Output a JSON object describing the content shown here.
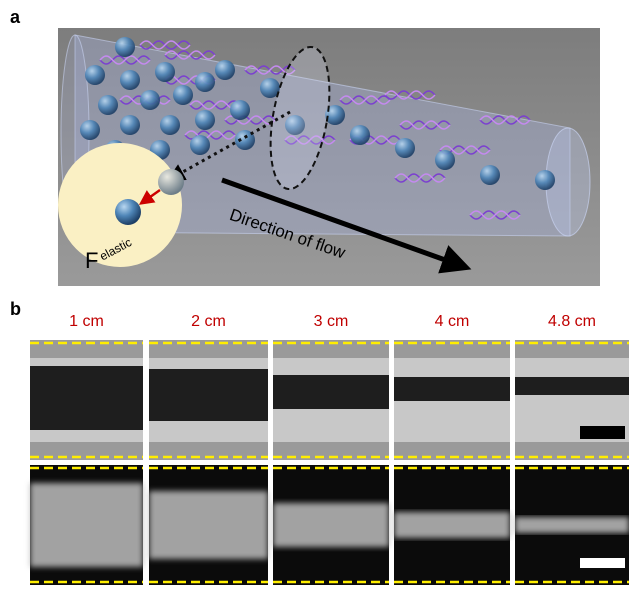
{
  "panel_a": {
    "label": "a",
    "force_label": "F",
    "force_subscript": "elastic",
    "flow_label": "Direction of flow"
  },
  "panel_b": {
    "label": "b",
    "columns": [
      "1 cm",
      "2 cm",
      "3 cm",
      "4 cm",
      "4.8 cm"
    ]
  }
}
